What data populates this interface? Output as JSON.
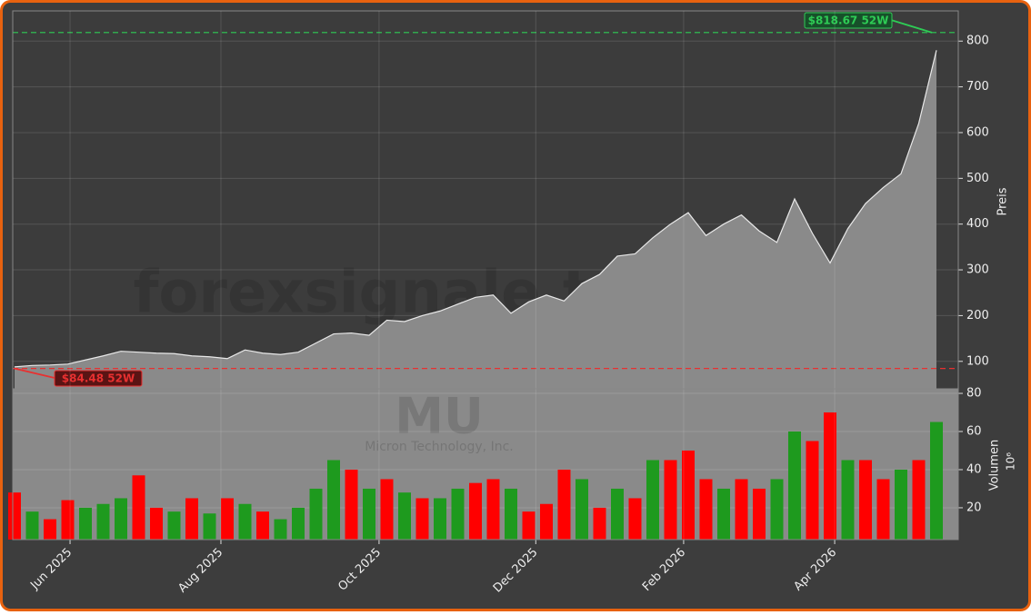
{
  "chart_data": [
    {
      "type": "area",
      "title": "MU",
      "subtitle": "Micron Technology, Inc.",
      "watermark": "forexsignale.trade",
      "y_label": "Preis",
      "categories": [
        null,
        null,
        null,
        null,
        null,
        null,
        null,
        null,
        null,
        null,
        null,
        null,
        null,
        null,
        null,
        null,
        null,
        null,
        null,
        null,
        null,
        null,
        null,
        null,
        null,
        null,
        null,
        null,
        null,
        null,
        null,
        null,
        null,
        null,
        null,
        null,
        null,
        null,
        null,
        null,
        null,
        null,
        null,
        null,
        null,
        null,
        null,
        null,
        null,
        null,
        null,
        null,
        null
      ],
      "series": [
        {
          "name": "MU",
          "color": "#8a8a8a",
          "values": [
            88,
            91,
            92,
            94,
            103,
            112,
            122,
            120,
            118,
            117,
            112,
            110,
            106,
            125,
            118,
            115,
            120,
            140,
            160,
            162,
            157,
            190,
            187,
            200,
            210,
            225,
            240,
            245,
            205,
            230,
            245,
            232,
            270,
            290,
            330,
            335,
            370,
            400,
            425,
            375,
            400,
            420,
            385,
            360,
            455,
            380,
            315,
            390,
            445,
            480,
            510,
            620,
            780
          ]
        }
      ],
      "ylim": [
        40,
        866
      ],
      "yticks": [
        100,
        200,
        300,
        400,
        500,
        600,
        700,
        800
      ],
      "grid": true,
      "annotations": [
        {
          "text": "$818.67 52W",
          "value": 818.67,
          "color": "#2ecc55"
        },
        {
          "text": "$84.48 52W",
          "value": 84.48,
          "color": "#e83030"
        }
      ]
    },
    {
      "type": "bar",
      "y_label": "Volumen",
      "y_unit": "10⁶",
      "categories": [
        null,
        null,
        null,
        null,
        null,
        null,
        null,
        null,
        null,
        null,
        null,
        null,
        null,
        null,
        null,
        null,
        null,
        null,
        null,
        null,
        null,
        null,
        null,
        null,
        null,
        null,
        null,
        null,
        null,
        null,
        null,
        null,
        null,
        null,
        null,
        null,
        null,
        null,
        null,
        null,
        null,
        null,
        null,
        null,
        null,
        null,
        null,
        null,
        null,
        null,
        null,
        null,
        null
      ],
      "values": [
        28,
        18,
        14,
        24,
        20,
        22,
        25,
        37,
        20,
        18,
        25,
        17,
        25,
        22,
        18,
        14,
        20,
        30,
        45,
        40,
        30,
        35,
        28,
        25,
        25,
        30,
        33,
        35,
        30,
        18,
        22,
        40,
        35,
        20,
        30,
        25,
        45,
        45,
        50,
        35,
        30,
        35,
        30,
        35,
        60,
        55,
        70,
        45,
        45,
        35,
        40,
        45,
        65
      ],
      "colors": [
        "#ff0000",
        "#1e9a1e",
        "#ff0000",
        "#ff0000",
        "#1e9a1e",
        "#1e9a1e",
        "#1e9a1e",
        "#ff0000",
        "#ff0000",
        "#1e9a1e",
        "#ff0000",
        "#1e9a1e",
        "#ff0000",
        "#1e9a1e",
        "#ff0000",
        "#1e9a1e",
        "#1e9a1e",
        "#1e9a1e",
        "#1e9a1e",
        "#ff0000",
        "#1e9a1e",
        "#ff0000",
        "#1e9a1e",
        "#ff0000",
        "#1e9a1e",
        "#1e9a1e",
        "#ff0000",
        "#ff0000",
        "#1e9a1e",
        "#ff0000",
        "#ff0000",
        "#ff0000",
        "#1e9a1e",
        "#ff0000",
        "#1e9a1e",
        "#ff0000",
        "#1e9a1e",
        "#ff0000",
        "#ff0000",
        "#ff0000",
        "#1e9a1e",
        "#ff0000",
        "#ff0000",
        "#1e9a1e",
        "#1e9a1e",
        "#ff0000",
        "#ff0000",
        "#1e9a1e",
        "#ff0000",
        "#ff0000",
        "#1e9a1e",
        "#ff0000",
        "#1e9a1e"
      ],
      "ylim": [
        3.3,
        82.4
      ],
      "yticks": [
        20,
        40,
        60,
        80
      ],
      "grid": true,
      "xticks": [
        {
          "value": 3.13,
          "label": "Jun 2025"
        },
        {
          "value": 11.64,
          "label": "Aug 2025"
        },
        {
          "value": 20.56,
          "label": "Oct 2025"
        },
        {
          "value": 29.4,
          "label": "Dec 2025"
        },
        {
          "value": 37.74,
          "label": "Feb 2026"
        },
        {
          "value": 46.26,
          "label": "Apr 2026"
        }
      ]
    }
  ]
}
